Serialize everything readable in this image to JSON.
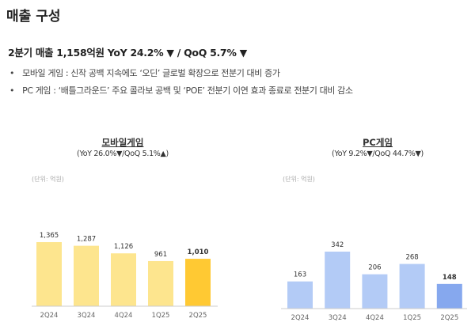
{
  "page_title": "매출 구성",
  "headline": "2분기 매출 1,158억원 YoY 24.2% ▼ / QoQ 5.7% ▼",
  "bullets": [
    "모바일 게임 : 신작 공백 지속에도 ‘오딘’ 글로벌 확장으로 전분기 대비 증가",
    "PC 게임 : ‘배틀그라운드’ 주요 콜라보 공백 및 ‘POE’ 전분기 이연 효과 종료로 전분기 대비 감소"
  ],
  "chart_data": [
    {
      "type": "bar",
      "title": "모바일게임",
      "subtitle": "(YoY 26.0%▼/QoQ 5.1%▲)",
      "unit": "(단위: 억원)",
      "categories": [
        "2Q24",
        "3Q24",
        "4Q24",
        "1Q25",
        "2Q25"
      ],
      "values": [
        1365,
        1287,
        1126,
        961,
        1010
      ],
      "value_labels": [
        "1,365",
        "1,287",
        "1,126",
        "961",
        "1,010"
      ],
      "ylim": [
        0,
        1400
      ],
      "colors": {
        "bar": "#FDE58E",
        "highlight": "#FFC933"
      }
    },
    {
      "type": "bar",
      "title": "PC게임",
      "subtitle": "(YoY 9.2%▼/QoQ 44.7%▼)",
      "unit": "(단위: 억원)",
      "categories": [
        "2Q24",
        "3Q24",
        "4Q24",
        "1Q25",
        "2Q25"
      ],
      "values": [
        163,
        342,
        206,
        268,
        148
      ],
      "value_labels": [
        "163",
        "342",
        "206",
        "268",
        "148"
      ],
      "ylim": [
        0,
        360
      ],
      "colors": {
        "bar": "#B3CBF6",
        "highlight": "#86A8EE"
      }
    }
  ]
}
